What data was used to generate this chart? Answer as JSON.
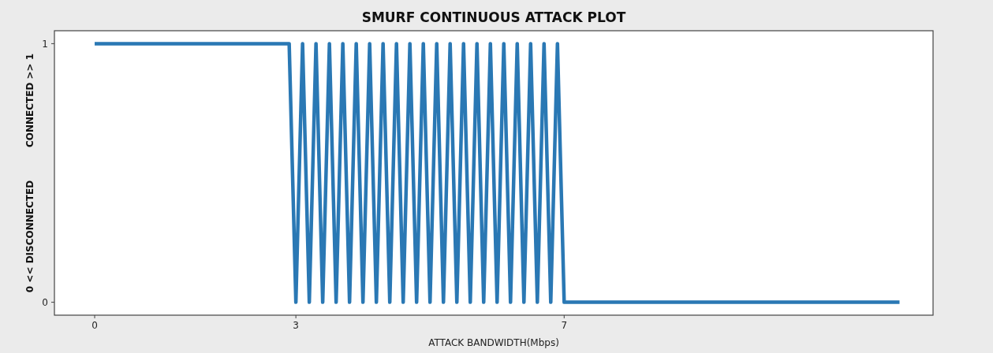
{
  "chart_data": {
    "type": "line",
    "title": "SMURF CONTINUOUS ATTACK PLOT",
    "xlabel": "ATTACK BANDWIDTH(Mbps)",
    "ylabel": "0 << DISCONNECTED          CONNECTED >> 1",
    "series": [
      {
        "color": "#2a78b4",
        "x": [
          0,
          2.9,
          3.0,
          3.1,
          3.2,
          3.3,
          3.4,
          3.5,
          3.6,
          3.7,
          3.8,
          3.9,
          4.0,
          4.1,
          4.2,
          4.3,
          4.4,
          4.5,
          4.6,
          4.7,
          4.8,
          4.9,
          5.0,
          5.1,
          5.2,
          5.3,
          5.4,
          5.5,
          5.6,
          5.7,
          5.8,
          5.9,
          6.0,
          6.1,
          6.2,
          6.3,
          6.4,
          6.5,
          6.6,
          6.7,
          6.8,
          6.9,
          7.0,
          12
        ],
        "values": [
          1,
          1,
          0,
          1,
          0,
          1,
          0,
          1,
          0,
          1,
          0,
          1,
          0,
          1,
          0,
          1,
          0,
          1,
          0,
          1,
          0,
          1,
          0,
          1,
          0,
          1,
          0,
          1,
          0,
          1,
          0,
          1,
          0,
          1,
          0,
          1,
          0,
          1,
          0,
          1,
          0,
          1,
          0,
          0
        ]
      }
    ],
    "xlim": [
      -0.6,
      12.5
    ],
    "xticks": [
      0,
      3,
      7
    ],
    "ylim": [
      -0.05,
      1.05
    ],
    "yticks": [
      0,
      1
    ],
    "grid": false,
    "line_style": "solid",
    "marker": "none"
  }
}
